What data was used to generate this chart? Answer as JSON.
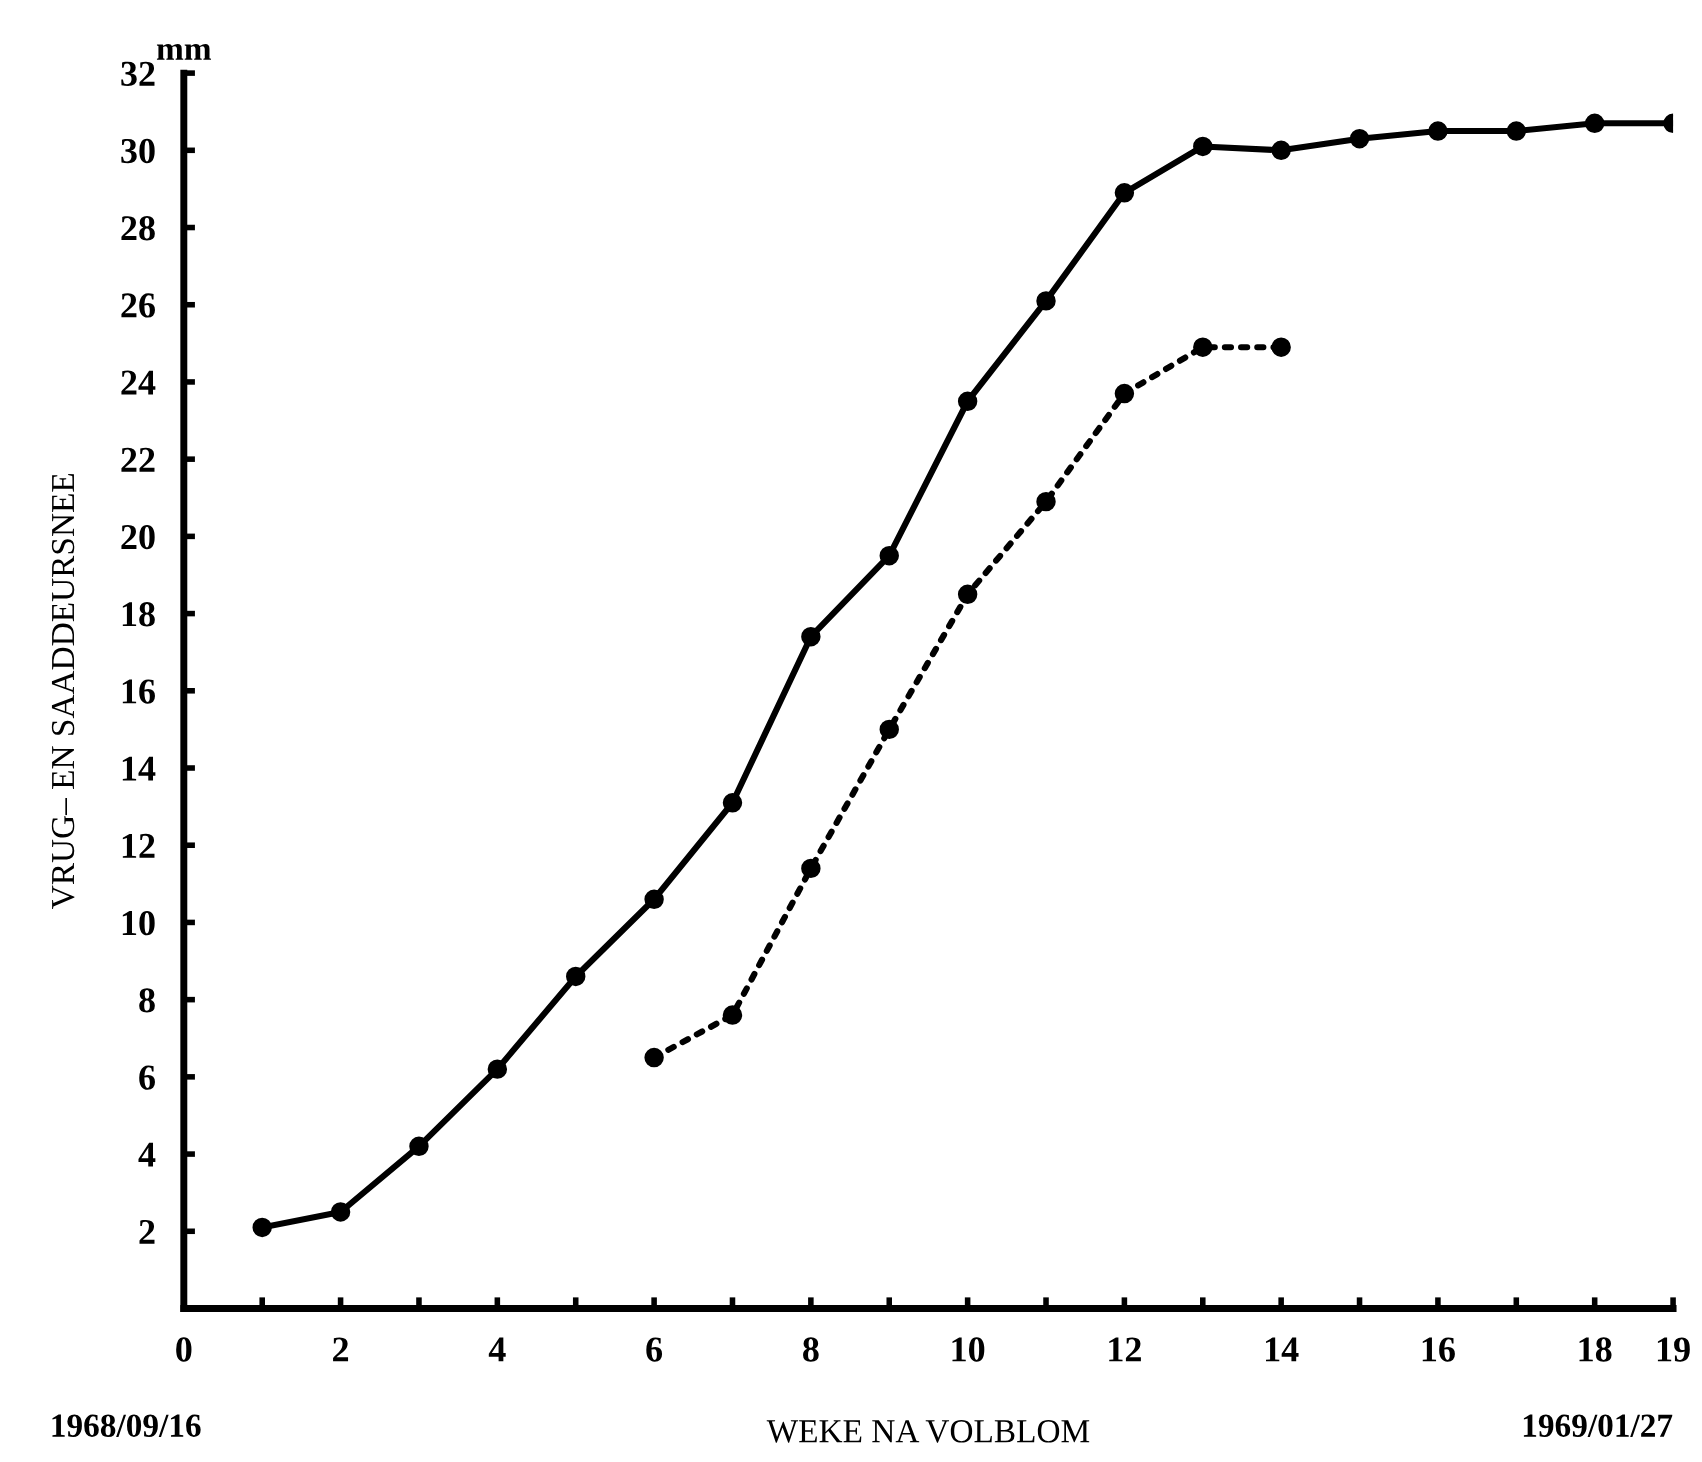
{
  "chart_data": {
    "type": "line",
    "xlabel": "WEKE NA VOLBLOM",
    "ylabel": "VRUG– EN SAADDEURSNEE",
    "annotations": [
      "mm",
      "1968/09/16",
      "1969/01/27"
    ],
    "xlim": [
      0,
      19
    ],
    "ylim": [
      0,
      32
    ],
    "xticks": [
      0,
      {
        "value": 1,
        "label": null
      },
      2,
      {
        "value": 3,
        "label": null
      },
      4,
      {
        "value": 5,
        "label": null
      },
      6,
      {
        "value": 7,
        "label": null
      },
      8,
      {
        "value": 9,
        "label": null
      },
      10,
      {
        "value": 11,
        "label": null
      },
      12,
      {
        "value": 13,
        "label": null
      },
      14,
      {
        "value": 15,
        "label": null
      },
      16,
      {
        "value": 17,
        "label": null
      },
      18,
      19
    ],
    "yticks": [
      2,
      4,
      6,
      8,
      10,
      12,
      14,
      16,
      18,
      20,
      22,
      24,
      26,
      28,
      30,
      32
    ],
    "grid": false,
    "legend": false,
    "marker": "circle",
    "series": [
      {
        "color": "#000000",
        "line_style": "solid",
        "x": [
          1,
          2,
          3,
          4,
          5,
          6,
          7,
          8,
          9,
          10,
          11,
          12,
          13,
          14,
          15,
          16,
          17,
          18,
          19
        ],
        "values": [
          2.1,
          2.5,
          4.2,
          6.2,
          8.6,
          10.6,
          13.1,
          17.4,
          19.5,
          23.5,
          26.1,
          28.9,
          30.1,
          30.0,
          30.3,
          30.5,
          30.5,
          30.7,
          30.7
        ]
      },
      {
        "color": "#000000",
        "line_style": "dotted",
        "x": [
          6,
          7,
          8,
          9,
          10,
          11,
          12,
          13,
          14
        ],
        "values": [
          6.5,
          7.6,
          11.4,
          15.0,
          18.5,
          20.9,
          23.7,
          24.9,
          24.9
        ]
      }
    ]
  }
}
